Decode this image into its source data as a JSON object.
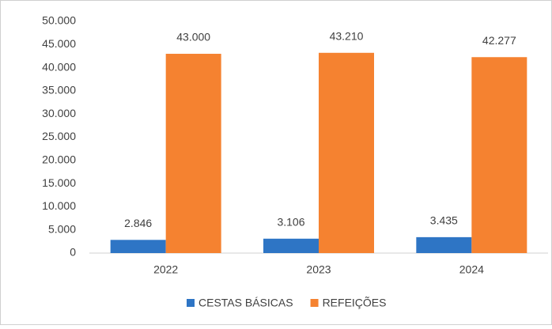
{
  "chart_data": {
    "type": "bar",
    "categories": [
      "2022",
      "2023",
      "2024"
    ],
    "series": [
      {
        "name": "CESTAS BÁSICAS",
        "color": "#2e75c5",
        "values": [
          2846,
          3106,
          3435
        ],
        "value_labels": [
          "2.846",
          "3.106",
          "3.435"
        ]
      },
      {
        "name": "REFEIÇÕES",
        "color": "#f58230",
        "values": [
          43000,
          43210,
          42277
        ],
        "value_labels": [
          "43.000",
          "43.210",
          "42.277"
        ]
      }
    ],
    "ylim": [
      0,
      50000
    ],
    "yticks": [
      0,
      {
        "value": 5000,
        "label": "5.000"
      },
      {
        "value": 10000,
        "label": "10.000"
      },
      {
        "value": 15000,
        "label": "15.000"
      },
      {
        "value": 20000,
        "label": "20.000"
      },
      {
        "value": 25000,
        "label": "25.000"
      },
      {
        "value": 30000,
        "label": "30.000"
      },
      {
        "value": 35000,
        "label": "35.000"
      },
      {
        "value": 40000,
        "label": "40.000"
      },
      {
        "value": 45000,
        "label": "45.000"
      },
      {
        "value": 50000,
        "label": "50.000"
      }
    ],
    "grid": false,
    "legend": "bottom"
  }
}
